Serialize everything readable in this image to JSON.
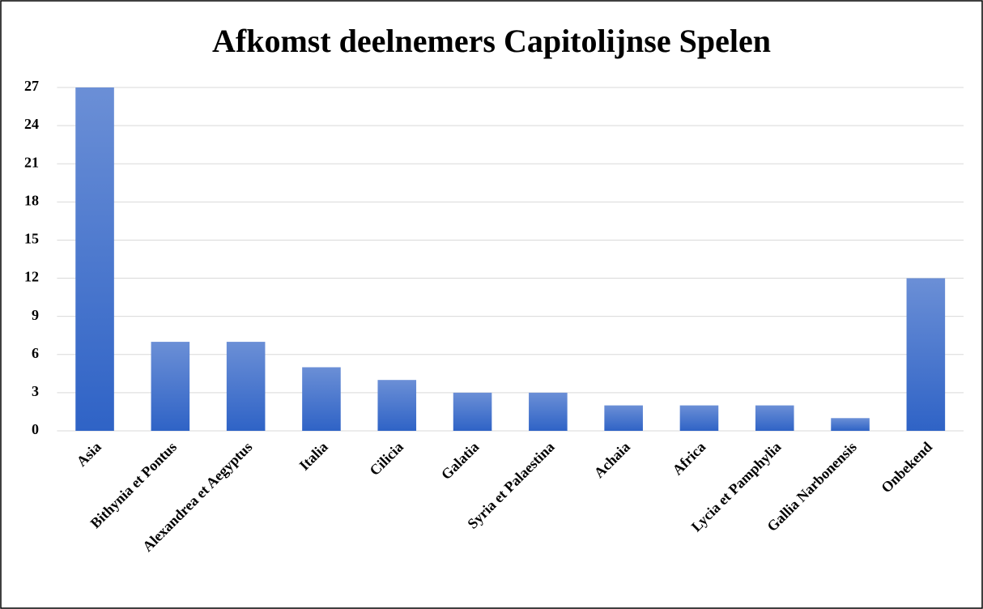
{
  "chart_data": {
    "type": "bar",
    "title": "Afkomst deelnemers Capitolijnse Spelen",
    "categories": [
      "Asia",
      "Bithynia et Pontus",
      "Alexandrea et Aegyptus",
      "Italia",
      "Cilicia",
      "Galatia",
      "Syria et Palaestina",
      "Achaia",
      "Africa",
      "Lycia et Pamphylia",
      "Gallia Narbonensis",
      "Onbekend"
    ],
    "values": [
      27,
      7,
      7,
      5,
      4,
      3,
      3,
      2,
      2,
      2,
      1,
      12
    ],
    "gradient": [
      "#6b8fd6",
      "#2f63c6"
    ],
    "ylim": [
      0,
      27
    ],
    "yticks": [
      0,
      3,
      6,
      9,
      12,
      15,
      18,
      21,
      24,
      27
    ],
    "grid": true
  }
}
